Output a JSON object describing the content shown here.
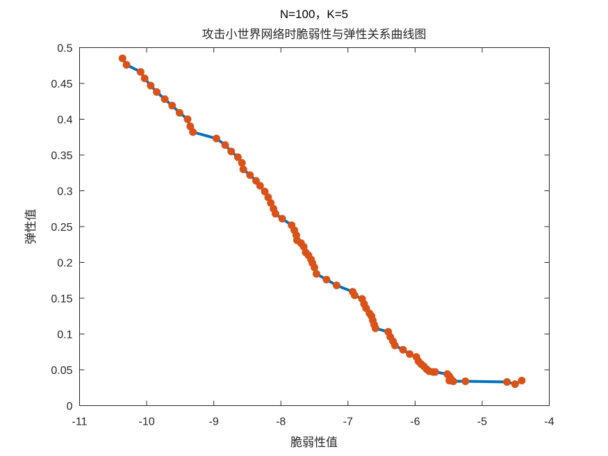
{
  "chart_data": {
    "type": "line",
    "title": "N=100，K=5",
    "subtitle": "攻击小世界网络时脆弱性与弹性关系曲线图",
    "xlabel": "脆弱性值",
    "ylabel": "弹性值",
    "xlim": [
      -11,
      -4
    ],
    "ylim": [
      0,
      0.5
    ],
    "xticks": [
      -11,
      -10,
      -9,
      -8,
      -7,
      -6,
      -5,
      -4
    ],
    "yticks": [
      0,
      0.05,
      0.1,
      0.15,
      0.2,
      0.25,
      0.3,
      0.35,
      0.4,
      0.45,
      0.5
    ],
    "xtick_labels": [
      "-11",
      "-10",
      "-9",
      "-8",
      "-7",
      "-6",
      "-5",
      "-4"
    ],
    "ytick_labels": [
      "0",
      "0.05",
      "0.1",
      "0.15",
      "0.2",
      "0.25",
      "0.3",
      "0.35",
      "0.4",
      "0.45",
      "0.5"
    ],
    "grid": false,
    "line_color": "#0072BD",
    "marker_color": "#D95319",
    "x": [
      -10.36,
      -10.3,
      -10.09,
      -10.03,
      -9.94,
      -9.85,
      -9.73,
      -9.62,
      -9.51,
      -9.39,
      -9.35,
      -9.31,
      -8.96,
      -8.83,
      -8.74,
      -8.64,
      -8.58,
      -8.56,
      -8.46,
      -8.37,
      -8.31,
      -8.24,
      -8.19,
      -8.15,
      -8.11,
      -8.08,
      -7.98,
      -7.84,
      -7.8,
      -7.77,
      -7.76,
      -7.7,
      -7.66,
      -7.63,
      -7.59,
      -7.55,
      -7.53,
      -7.5,
      -7.47,
      -7.32,
      -7.17,
      -6.93,
      -6.9,
      -6.79,
      -6.76,
      -6.73,
      -6.68,
      -6.65,
      -6.63,
      -6.61,
      -6.59,
      -6.4,
      -6.37,
      -6.33,
      -6.3,
      -6.18,
      -6.08,
      -5.98,
      -5.95,
      -5.91,
      -5.87,
      -5.83,
      -5.79,
      -5.73,
      -5.7,
      -5.52,
      -5.49,
      -5.47,
      -5.48,
      -5.49,
      -5.43,
      -5.25,
      -4.63,
      -4.51,
      -4.41
    ],
    "y": [
      0.485,
      0.476,
      0.466,
      0.457,
      0.447,
      0.438,
      0.428,
      0.419,
      0.409,
      0.4,
      0.39,
      0.382,
      0.373,
      0.364,
      0.355,
      0.347,
      0.339,
      0.33,
      0.322,
      0.314,
      0.307,
      0.299,
      0.291,
      0.283,
      0.275,
      0.268,
      0.261,
      0.252,
      0.245,
      0.238,
      0.231,
      0.227,
      0.222,
      0.214,
      0.21,
      0.204,
      0.199,
      0.193,
      0.184,
      0.176,
      0.168,
      0.159,
      0.154,
      0.149,
      0.142,
      0.136,
      0.129,
      0.125,
      0.119,
      0.113,
      0.108,
      0.103,
      0.096,
      0.09,
      0.084,
      0.078,
      0.072,
      0.068,
      0.062,
      0.058,
      0.055,
      0.051,
      0.048,
      0.047,
      0.047,
      0.044,
      0.041,
      0.038,
      0.035,
      0.035,
      0.034,
      0.034,
      0.033,
      0.03,
      0.035
    ]
  }
}
